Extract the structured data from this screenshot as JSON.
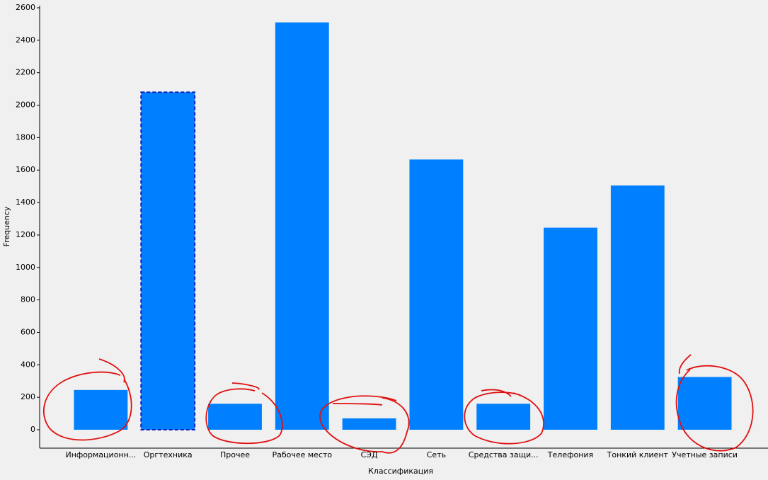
{
  "chart_data": {
    "type": "bar",
    "categories": [
      "Информационн...",
      "Оргтехника",
      "Прочее",
      "Рабочее место",
      "СЭД",
      "Сеть",
      "Средства защи...",
      "Телефония",
      "Тонкий клиент",
      "Учетные записи"
    ],
    "values": [
      245,
      2080,
      160,
      2510,
      70,
      1665,
      160,
      1245,
      1505,
      325
    ],
    "color": "#0080ff",
    "selected": 1,
    "x_label": "Классификация",
    "y_label": "Frequency",
    "ylim": [
      0,
      2600
    ],
    "yticks": [
      0,
      200,
      400,
      600,
      800,
      1000,
      1200,
      1400,
      1600,
      1800,
      2000,
      2200,
      2400,
      2600
    ],
    "grid": false
  }
}
